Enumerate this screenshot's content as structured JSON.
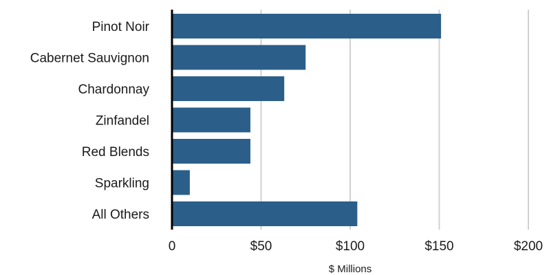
{
  "chart_data": {
    "type": "bar",
    "orientation": "horizontal",
    "categories": [
      "Pinot Noir",
      "Cabernet Sauvignon",
      "Chardonnay",
      "Zinfandel",
      "Red Blends",
      "Sparkling",
      "All Others"
    ],
    "values": [
      151,
      75,
      63,
      44,
      44,
      10,
      104
    ],
    "xlabel": "$ Millions",
    "xlim": [
      0,
      200
    ],
    "xticks": [
      0,
      50,
      100,
      150,
      200
    ],
    "xtick_labels": [
      "0",
      "$50",
      "$100",
      "$150",
      "$200"
    ],
    "grid": "vertical",
    "colors": {
      "bar": "#2b5f8a",
      "grid": "#d0d0d0",
      "axis": "#000000"
    }
  }
}
